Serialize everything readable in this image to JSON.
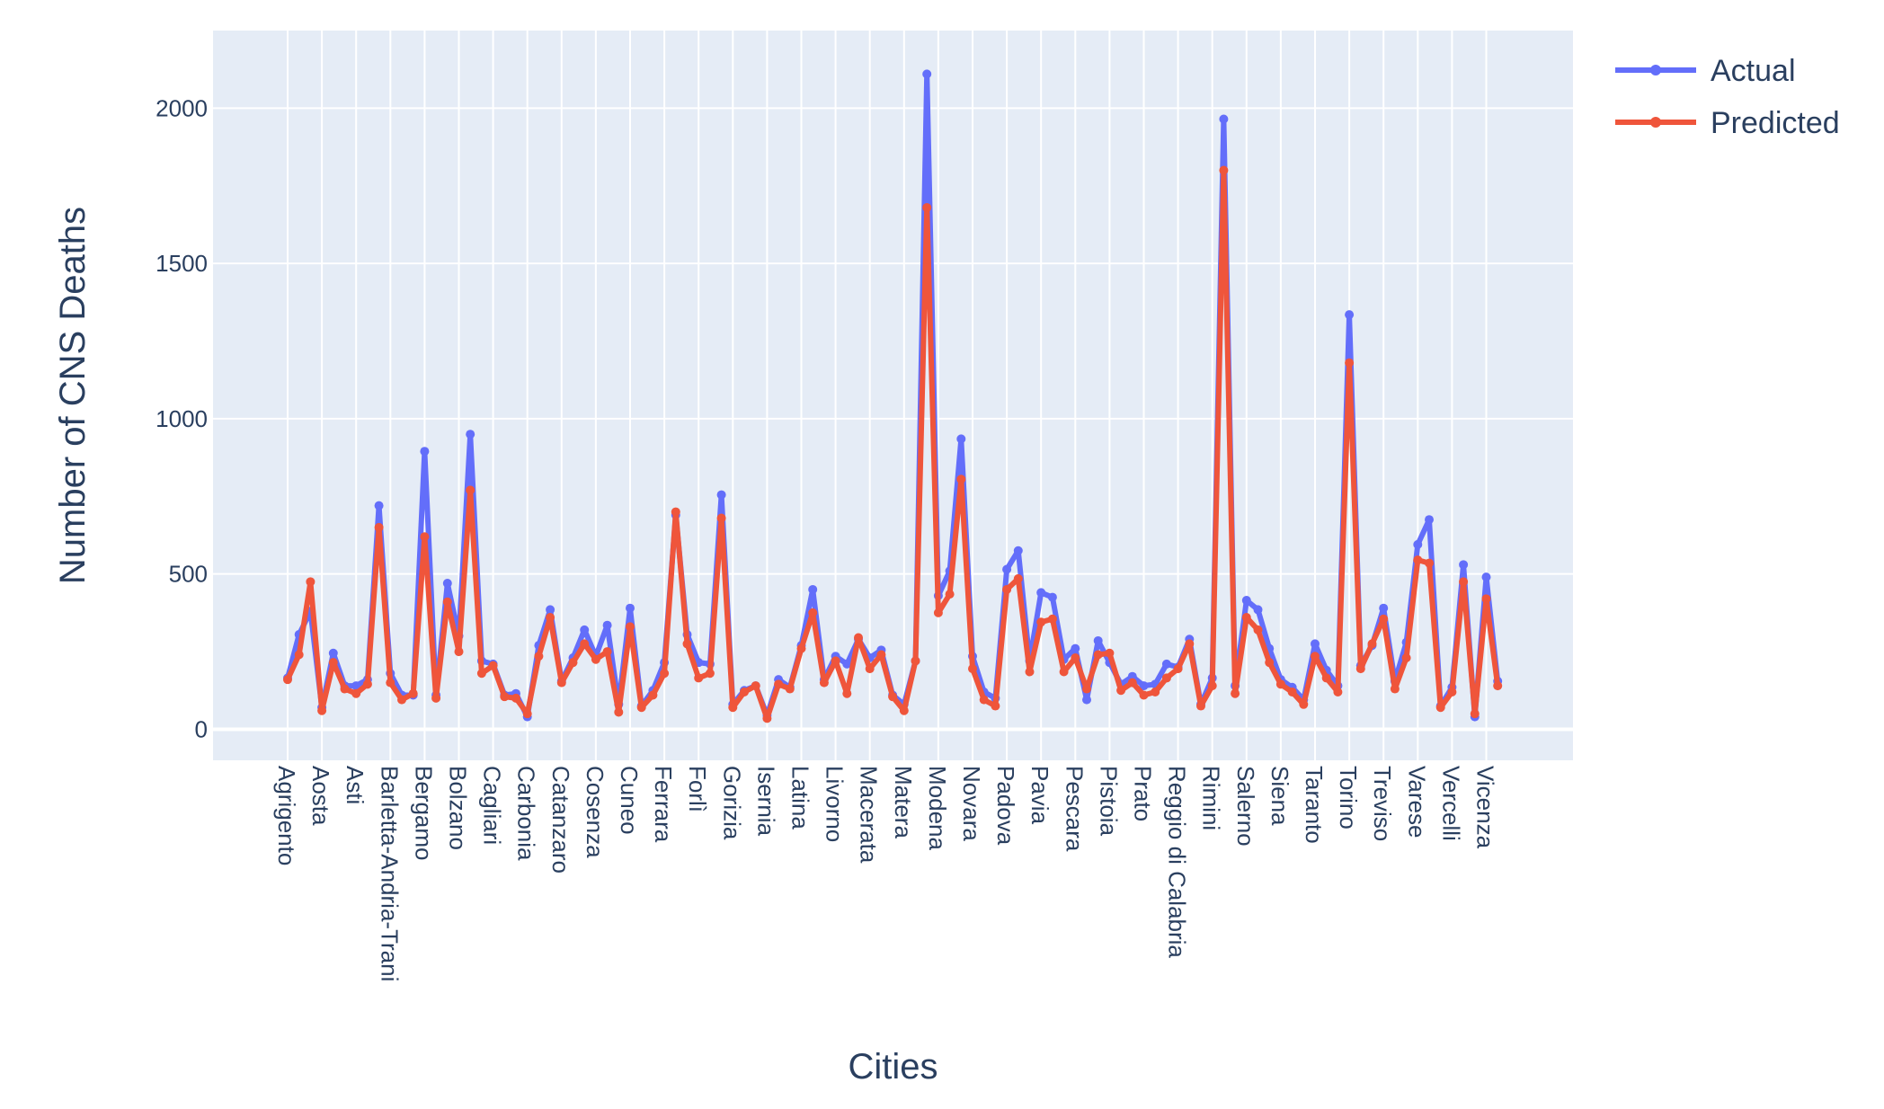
{
  "colors": {
    "plot_background": "#E5ECF6",
    "grid": "#ffffff",
    "text": "#2a3f5f",
    "actual": "#636EFA",
    "predicted": "#EF553B"
  },
  "chart_data": {
    "type": "line",
    "xlabel": "Cities",
    "ylabel": "Number of CNS Deaths",
    "ylim": [
      -100,
      2250
    ],
    "yticks": [
      0,
      500,
      1000,
      1500,
      2000
    ],
    "grid": true,
    "legend": "top-right",
    "tick_labels": [
      "Agrigento",
      "Aosta",
      "Asti",
      "Barletta-Andria-Trani",
      "Bergamo",
      "Bolzano",
      "Cagliari",
      "Carbonia",
      "Catanzaro",
      "Cosenza",
      "Cuneo",
      "Ferrara",
      "Forlì",
      "Gorizia",
      "Isernia",
      "Latina",
      "Livorno",
      "Macerata",
      "Matera",
      "Modena",
      "Novara",
      "Padova",
      "Pavia",
      "Pescara",
      "Pistoia",
      "Prato",
      "Reggio di Calabria",
      "Rimini",
      "Salerno",
      "Siena",
      "Taranto",
      "Torino",
      "Treviso",
      "Varese",
      "Vercelli",
      "Vicenza"
    ],
    "series": [
      {
        "name": "Actual",
        "values": [
          165,
          305,
          380,
          70,
          245,
          140,
          140,
          160,
          720,
          180,
          110,
          110,
          895,
          110,
          470,
          300,
          950,
          220,
          210,
          110,
          115,
          40,
          270,
          385,
          155,
          230,
          320,
          235,
          335,
          80,
          390,
          75,
          125,
          215,
          690,
          305,
          215,
          210,
          755,
          80,
          125,
          140,
          45,
          160,
          135,
          270,
          450,
          160,
          235,
          210,
          290,
          230,
          255,
          110,
          80,
          220,
          2110,
          430,
          510,
          935,
          235,
          120,
          100,
          515,
          575,
          220,
          440,
          425,
          225,
          260,
          95,
          285,
          215,
          145,
          170,
          140,
          145,
          210,
          200,
          290,
          80,
          165,
          1965,
          140,
          415,
          385,
          260,
          160,
          135,
          95,
          275,
          190,
          140,
          1335,
          205,
          270,
          390,
          155,
          280,
          595,
          675,
          75,
          135,
          530,
          40,
          490,
          155
        ]
      },
      {
        "name": "Predicted",
        "values": [
          160,
          240,
          475,
          60,
          215,
          130,
          115,
          145,
          650,
          150,
          95,
          115,
          620,
          100,
          410,
          250,
          770,
          180,
          205,
          105,
          100,
          50,
          235,
          360,
          150,
          215,
          275,
          225,
          250,
          55,
          330,
          70,
          110,
          180,
          700,
          275,
          165,
          180,
          680,
          70,
          120,
          140,
          35,
          145,
          130,
          260,
          375,
          150,
          220,
          115,
          295,
          195,
          240,
          105,
          60,
          220,
          1680,
          375,
          435,
          805,
          195,
          95,
          75,
          450,
          485,
          185,
          345,
          355,
          185,
          230,
          130,
          240,
          245,
          125,
          150,
          110,
          120,
          165,
          195,
          275,
          75,
          140,
          1800,
          115,
          360,
          320,
          215,
          145,
          120,
          80,
          235,
          165,
          120,
          1180,
          195,
          275,
          355,
          130,
          230,
          545,
          535,
          70,
          120,
          475,
          50,
          420,
          140
        ]
      }
    ]
  }
}
